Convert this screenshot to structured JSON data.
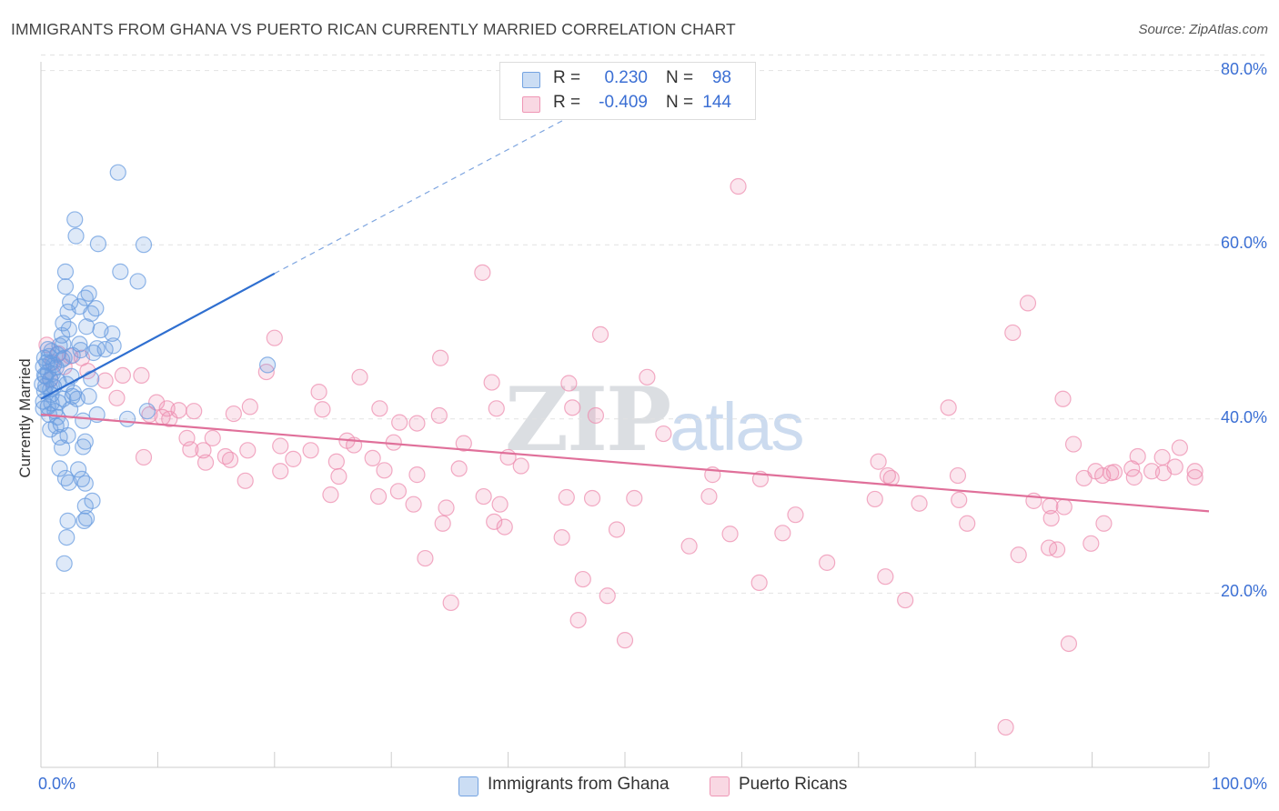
{
  "header": {
    "title": "IMMIGRANTS FROM GHANA VS PUERTO RICAN CURRENTLY MARRIED CORRELATION CHART",
    "source": "Source: ZipAtlas.com"
  },
  "watermark": {
    "zip": "ZIP",
    "atlas": "atlas"
  },
  "stats": {
    "rows": [
      {
        "r_label": "R =",
        "r_value": "0.230",
        "n_label": "N =",
        "n_value": "98",
        "color": "#6b9de0"
      },
      {
        "r_label": "R =",
        "r_value": "-0.409",
        "n_label": "N =",
        "n_value": "144",
        "color": "#ee8fb0"
      }
    ]
  },
  "legend": {
    "items": [
      {
        "label": "Immigrants from Ghana",
        "color": "#6b9de0"
      },
      {
        "label": "Puerto Ricans",
        "color": "#ee8fb0"
      }
    ]
  },
  "chart_data": {
    "type": "scatter",
    "title": "IMMIGRANTS FROM GHANA VS PUERTO RICAN CURRENTLY MARRIED CORRELATION CHART",
    "xlabel": "",
    "ylabel": "Currently Married",
    "xlim": [
      0,
      100
    ],
    "ylim": [
      0,
      82
    ],
    "x_tick_labels": [
      "0.0%",
      "100.0%"
    ],
    "y_ticks": [
      20,
      40,
      60,
      80
    ],
    "y_tick_labels": [
      "20.0%",
      "40.0%",
      "60.0%",
      "80.0%"
    ],
    "grid": true,
    "legend_position": "bottom",
    "series": [
      {
        "name": "Immigrants from Ghana",
        "color": "#6b9de0",
        "trend": {
          "x": [
            0,
            20
          ],
          "y": [
            42.3,
            56.7
          ],
          "dashed_to": {
            "x": 45,
            "y": 74.5
          }
        },
        "points": [
          [
            6.6,
            68.3
          ],
          [
            2.9,
            62.9
          ],
          [
            4.9,
            60.1
          ],
          [
            8.8,
            60.0
          ],
          [
            3.0,
            61.0
          ],
          [
            2.1,
            56.9
          ],
          [
            6.8,
            56.9
          ],
          [
            8.3,
            55.8
          ],
          [
            2.1,
            55.2
          ],
          [
            4.1,
            54.4
          ],
          [
            3.8,
            53.9
          ],
          [
            2.5,
            53.4
          ],
          [
            3.3,
            52.9
          ],
          [
            4.7,
            52.7
          ],
          [
            2.3,
            52.3
          ],
          [
            4.3,
            52.1
          ],
          [
            1.9,
            51.0
          ],
          [
            3.9,
            50.6
          ],
          [
            2.4,
            50.3
          ],
          [
            5.1,
            50.2
          ],
          [
            1.8,
            49.6
          ],
          [
            6.1,
            49.8
          ],
          [
            3.3,
            48.6
          ],
          [
            6.2,
            48.4
          ],
          [
            4.8,
            48.1
          ],
          [
            1.6,
            48.4
          ],
          [
            0.9,
            47.8
          ],
          [
            4.5,
            47.6
          ],
          [
            1.4,
            47.4
          ],
          [
            0.3,
            47.0
          ],
          [
            2.7,
            47.3
          ],
          [
            0.8,
            46.4
          ],
          [
            0.2,
            46.0
          ],
          [
            1.3,
            45.9
          ],
          [
            0.6,
            45.4
          ],
          [
            19.4,
            46.2
          ],
          [
            0.4,
            44.9
          ],
          [
            2.6,
            44.9
          ],
          [
            4.3,
            44.6
          ],
          [
            0.8,
            44.6
          ],
          [
            0.1,
            44.0
          ],
          [
            1.1,
            43.7
          ],
          [
            0.3,
            43.2
          ],
          [
            0.9,
            42.8
          ],
          [
            2.7,
            42.6
          ],
          [
            4.1,
            42.6
          ],
          [
            3.1,
            42.3
          ],
          [
            1.9,
            42.3
          ],
          [
            1.5,
            41.9
          ],
          [
            0.6,
            41.4
          ],
          [
            0.2,
            41.2
          ],
          [
            1.2,
            40.9
          ],
          [
            9.1,
            40.9
          ],
          [
            0.7,
            40.5
          ],
          [
            4.8,
            40.5
          ],
          [
            7.4,
            40.0
          ],
          [
            3.6,
            39.8
          ],
          [
            1.7,
            39.4
          ],
          [
            1.3,
            39.2
          ],
          [
            0.8,
            38.8
          ],
          [
            2.3,
            38.1
          ],
          [
            1.6,
            37.9
          ],
          [
            3.8,
            37.4
          ],
          [
            3.6,
            36.8
          ],
          [
            1.8,
            36.7
          ],
          [
            1.6,
            34.3
          ],
          [
            3.2,
            34.2
          ],
          [
            2.1,
            33.2
          ],
          [
            3.5,
            33.1
          ],
          [
            2.4,
            32.7
          ],
          [
            3.8,
            32.6
          ],
          [
            4.4,
            30.6
          ],
          [
            3.8,
            30.0
          ],
          [
            2.3,
            28.3
          ],
          [
            3.9,
            28.6
          ],
          [
            3.7,
            28.3
          ],
          [
            2.2,
            26.4
          ],
          [
            2.0,
            23.4
          ],
          [
            0.5,
            46.5
          ],
          [
            1.0,
            45.2
          ],
          [
            2.0,
            47.0
          ],
          [
            0.4,
            43.8
          ],
          [
            1.5,
            44.3
          ],
          [
            2.8,
            43.0
          ],
          [
            0.2,
            42.0
          ],
          [
            0.7,
            47.2
          ],
          [
            1.8,
            46.8
          ],
          [
            3.4,
            47.9
          ],
          [
            0.9,
            41.8
          ],
          [
            1.4,
            40.2
          ],
          [
            2.2,
            44.0
          ],
          [
            0.6,
            48.0
          ],
          [
            1.9,
            48.6
          ],
          [
            0.3,
            45.0
          ],
          [
            1.1,
            46.2
          ],
          [
            2.5,
            41.1
          ],
          [
            0.8,
            43.4
          ],
          [
            5.5,
            48.0
          ]
        ]
      },
      {
        "name": "Puerto Ricans",
        "color": "#ee8fb0",
        "trend": {
          "x": [
            0,
            100
          ],
          "y": [
            40.5,
            29.4
          ]
        },
        "points": [
          [
            59.7,
            66.7
          ],
          [
            37.8,
            56.8
          ],
          [
            84.5,
            53.3
          ],
          [
            83.2,
            49.9
          ],
          [
            47.9,
            49.7
          ],
          [
            20.0,
            49.3
          ],
          [
            34.2,
            47.0
          ],
          [
            19.3,
            45.4
          ],
          [
            27.3,
            44.8
          ],
          [
            51.9,
            44.8
          ],
          [
            45.2,
            44.1
          ],
          [
            7.0,
            45.0
          ],
          [
            8.6,
            45.0
          ],
          [
            5.5,
            44.4
          ],
          [
            38.6,
            44.2
          ],
          [
            23.8,
            43.1
          ],
          [
            6.5,
            42.4
          ],
          [
            9.9,
            41.9
          ],
          [
            87.5,
            42.3
          ],
          [
            10.8,
            41.2
          ],
          [
            11.8,
            41.0
          ],
          [
            17.9,
            41.4
          ],
          [
            29.0,
            41.2
          ],
          [
            39.0,
            41.2
          ],
          [
            24.1,
            41.1
          ],
          [
            45.5,
            41.3
          ],
          [
            77.7,
            41.3
          ],
          [
            9.3,
            40.5
          ],
          [
            13.1,
            40.9
          ],
          [
            16.5,
            40.6
          ],
          [
            34.1,
            40.4
          ],
          [
            47.5,
            40.4
          ],
          [
            10.4,
            40.2
          ],
          [
            11.0,
            40.0
          ],
          [
            30.7,
            39.6
          ],
          [
            32.2,
            39.5
          ],
          [
            53.3,
            38.3
          ],
          [
            12.5,
            37.8
          ],
          [
            26.2,
            37.5
          ],
          [
            14.7,
            37.8
          ],
          [
            30.2,
            37.3
          ],
          [
            36.2,
            37.2
          ],
          [
            88.4,
            37.1
          ],
          [
            12.8,
            36.5
          ],
          [
            13.9,
            36.4
          ],
          [
            20.5,
            36.9
          ],
          [
            23.1,
            36.4
          ],
          [
            26.8,
            37.0
          ],
          [
            97.5,
            36.7
          ],
          [
            17.7,
            36.4
          ],
          [
            96.0,
            35.6
          ],
          [
            8.8,
            35.6
          ],
          [
            15.8,
            35.7
          ],
          [
            21.6,
            35.4
          ],
          [
            28.4,
            35.5
          ],
          [
            40.0,
            35.6
          ],
          [
            93.9,
            35.7
          ],
          [
            14.1,
            35.0
          ],
          [
            16.2,
            35.3
          ],
          [
            25.3,
            35.1
          ],
          [
            29.4,
            34.1
          ],
          [
            35.8,
            34.3
          ],
          [
            20.5,
            34.0
          ],
          [
            25.5,
            33.4
          ],
          [
            41.1,
            34.6
          ],
          [
            71.7,
            35.1
          ],
          [
            91.6,
            33.8
          ],
          [
            90.3,
            34.0
          ],
          [
            93.4,
            34.3
          ],
          [
            95.1,
            34.0
          ],
          [
            97.1,
            34.5
          ],
          [
            98.8,
            34.0
          ],
          [
            98.8,
            33.3
          ],
          [
            91.9,
            33.9
          ],
          [
            90.9,
            33.5
          ],
          [
            89.3,
            33.2
          ],
          [
            93.6,
            33.3
          ],
          [
            96.1,
            33.8
          ],
          [
            72.5,
            33.5
          ],
          [
            57.5,
            33.6
          ],
          [
            61.6,
            33.1
          ],
          [
            72.8,
            33.2
          ],
          [
            78.5,
            33.5
          ],
          [
            32.2,
            33.6
          ],
          [
            17.5,
            32.9
          ],
          [
            30.6,
            31.7
          ],
          [
            24.8,
            31.3
          ],
          [
            28.9,
            31.1
          ],
          [
            37.9,
            31.1
          ],
          [
            39.3,
            30.2
          ],
          [
            45.0,
            31.0
          ],
          [
            47.2,
            30.9
          ],
          [
            57.2,
            31.1
          ],
          [
            71.4,
            30.8
          ],
          [
            78.6,
            30.7
          ],
          [
            85.0,
            30.6
          ],
          [
            86.4,
            30.0
          ],
          [
            87.6,
            29.9
          ],
          [
            31.9,
            30.2
          ],
          [
            34.7,
            29.8
          ],
          [
            50.8,
            30.9
          ],
          [
            34.4,
            28.0
          ],
          [
            39.7,
            27.6
          ],
          [
            38.8,
            28.2
          ],
          [
            49.3,
            27.3
          ],
          [
            64.6,
            29.0
          ],
          [
            75.2,
            30.3
          ],
          [
            86.5,
            28.6
          ],
          [
            91.0,
            28.0
          ],
          [
            44.6,
            26.4
          ],
          [
            59.0,
            26.8
          ],
          [
            63.5,
            26.9
          ],
          [
            55.5,
            25.4
          ],
          [
            79.3,
            28.0
          ],
          [
            83.7,
            24.4
          ],
          [
            86.3,
            25.2
          ],
          [
            89.9,
            25.7
          ],
          [
            87.0,
            25.0
          ],
          [
            32.9,
            24.0
          ],
          [
            67.3,
            23.5
          ],
          [
            46.4,
            21.6
          ],
          [
            61.5,
            21.2
          ],
          [
            72.3,
            21.9
          ],
          [
            48.5,
            19.7
          ],
          [
            74.0,
            19.2
          ],
          [
            35.1,
            18.9
          ],
          [
            46.0,
            16.9
          ],
          [
            50.0,
            14.6
          ],
          [
            88.0,
            14.2
          ],
          [
            82.6,
            4.6
          ],
          [
            0.5,
            48.5
          ],
          [
            1.5,
            47.5
          ],
          [
            2.5,
            47.2
          ],
          [
            3.5,
            47.0
          ],
          [
            1.0,
            46.5
          ],
          [
            2.0,
            46.0
          ],
          [
            4.0,
            45.5
          ],
          [
            0.8,
            44.5
          ]
        ]
      }
    ]
  }
}
